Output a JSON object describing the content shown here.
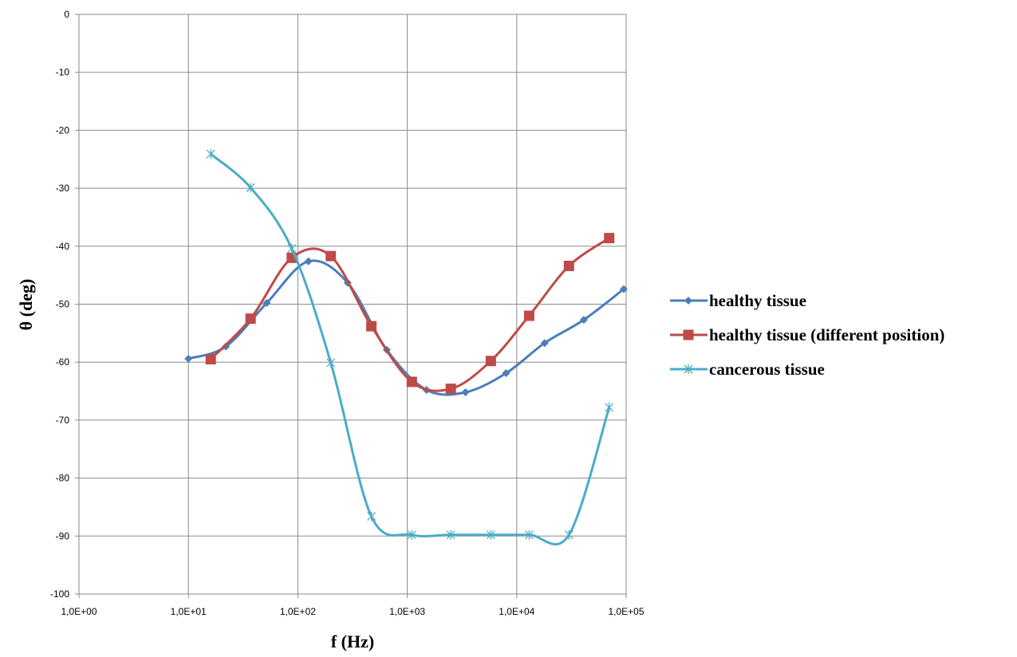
{
  "chart_data": {
    "type": "line",
    "title": "",
    "xlabel": "f (Hz)",
    "ylabel": "θ (deg)",
    "x_scale": "log",
    "xlim": [
      1,
      100000
    ],
    "ylim": [
      -100,
      0
    ],
    "x_tick_values": [
      1,
      10,
      100,
      1000,
      10000,
      100000
    ],
    "x_tick_labels": [
      "1,0E+00",
      "1,0E+01",
      "1,0E+02",
      "1,0E+03",
      "1,0E+04",
      "1,0E+05"
    ],
    "y_tick_values": [
      0,
      -10,
      -20,
      -30,
      -40,
      -50,
      -60,
      -70,
      -80,
      -90,
      -100
    ],
    "y_tick_labels": [
      "0",
      "-10",
      "-20",
      "-30",
      "-40",
      "-50",
      "-60",
      "-70",
      "-80",
      "-90",
      "-100"
    ],
    "grid": true,
    "legend_position": "right",
    "series": [
      {
        "name": "healthy tissue",
        "color": "#4a7ebb",
        "marker": "diamond",
        "x": [
          10,
          22,
          52,
          125,
          285,
          650,
          1500,
          3400,
          8000,
          18000,
          41000,
          95000
        ],
        "y": [
          -59.4,
          -57.3,
          -49.8,
          -42.6,
          -46.3,
          -57.9,
          -64.8,
          -65.2,
          -61.9,
          -56.7,
          -52.7,
          -47.4
        ]
      },
      {
        "name": "healthy tissue (different position)",
        "color": "#be4b48",
        "marker": "square",
        "x": [
          16,
          37,
          88,
          200,
          470,
          1100,
          2500,
          5800,
          13000,
          30000,
          70000
        ],
        "y": [
          -59.5,
          -52.5,
          -42.0,
          -41.7,
          -53.8,
          -63.4,
          -64.6,
          -59.8,
          -52.0,
          -43.4,
          -38.6
        ]
      },
      {
        "name": "cancerous tissue",
        "color": "#4bacc6",
        "marker": "star",
        "x": [
          16,
          37,
          88,
          200,
          470,
          1100,
          2500,
          5800,
          13000,
          30000,
          70000
        ],
        "y": [
          -24.1,
          -29.9,
          -40.4,
          -60.1,
          -86.6,
          -89.8,
          -89.8,
          -89.8,
          -89.8,
          -89.8,
          -67.8
        ]
      }
    ]
  }
}
